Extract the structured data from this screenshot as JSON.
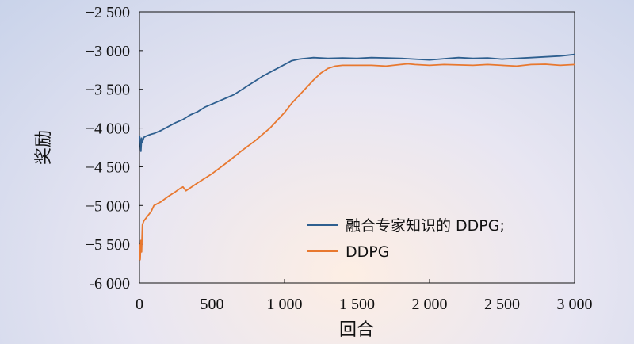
{
  "chart_data": {
    "type": "line",
    "title": "",
    "xlabel": "回合",
    "ylabel": "奖励",
    "xlim": [
      0,
      3000
    ],
    "ylim": [
      -6000,
      -2500
    ],
    "xticks": [
      0,
      500,
      1000,
      1500,
      2000,
      2500,
      3000
    ],
    "xtick_labels": [
      "0",
      "500",
      "1 000",
      "1 500",
      "2 000",
      "2 500",
      "3 000"
    ],
    "yticks": [
      -2500,
      -3000,
      -3500,
      -4000,
      -4500,
      -5000,
      -5500,
      -6000
    ],
    "ytick_labels": [
      "−2 500",
      "−3 000",
      "−3 500",
      "−4 000",
      "−4 500",
      "−5 000",
      "−5 500",
      "-6 000"
    ],
    "grid": false,
    "legend_position": "bottom-right",
    "series": [
      {
        "name": "融合专家知识的 DDPG;",
        "color": "#2e5f8f",
        "x": [
          0,
          5,
          10,
          15,
          20,
          30,
          50,
          80,
          100,
          150,
          200,
          250,
          300,
          350,
          400,
          450,
          500,
          550,
          600,
          650,
          700,
          750,
          800,
          850,
          900,
          950,
          1000,
          1050,
          1100,
          1150,
          1200,
          1300,
          1400,
          1500,
          1600,
          1700,
          1800,
          1900,
          2000,
          2100,
          2200,
          2300,
          2400,
          2500,
          2600,
          2700,
          2800,
          2900,
          3000
        ],
        "values": [
          -4100,
          -4150,
          -4300,
          -4130,
          -4180,
          -4120,
          -4100,
          -4080,
          -4070,
          -4030,
          -3980,
          -3930,
          -3890,
          -3830,
          -3790,
          -3730,
          -3690,
          -3650,
          -3610,
          -3570,
          -3510,
          -3450,
          -3390,
          -3330,
          -3280,
          -3230,
          -3180,
          -3130,
          -3110,
          -3100,
          -3090,
          -3100,
          -3095,
          -3100,
          -3090,
          -3095,
          -3100,
          -3110,
          -3120,
          -3105,
          -3090,
          -3100,
          -3095,
          -3110,
          -3100,
          -3090,
          -3080,
          -3070,
          -3050
        ]
      },
      {
        "name": "DDPG",
        "color": "#e8782f",
        "x": [
          0,
          5,
          10,
          15,
          20,
          30,
          50,
          80,
          100,
          150,
          200,
          250,
          280,
          300,
          320,
          400,
          500,
          600,
          700,
          800,
          900,
          1000,
          1050,
          1100,
          1150,
          1200,
          1250,
          1300,
          1350,
          1400,
          1500,
          1600,
          1700,
          1800,
          1850,
          1900,
          2000,
          2100,
          2200,
          2300,
          2400,
          2500,
          2600,
          2700,
          2800,
          2900,
          3000
        ],
        "values": [
          -5500,
          -5700,
          -5450,
          -5600,
          -5250,
          -5200,
          -5150,
          -5080,
          -5000,
          -4950,
          -4880,
          -4820,
          -4780,
          -4760,
          -4810,
          -4710,
          -4590,
          -4450,
          -4300,
          -4160,
          -4000,
          -3800,
          -3680,
          -3580,
          -3480,
          -3380,
          -3290,
          -3230,
          -3200,
          -3190,
          -3190,
          -3190,
          -3200,
          -3180,
          -3170,
          -3180,
          -3190,
          -3180,
          -3185,
          -3190,
          -3180,
          -3190,
          -3200,
          -3180,
          -3175,
          -3190,
          -3180
        ]
      }
    ]
  }
}
